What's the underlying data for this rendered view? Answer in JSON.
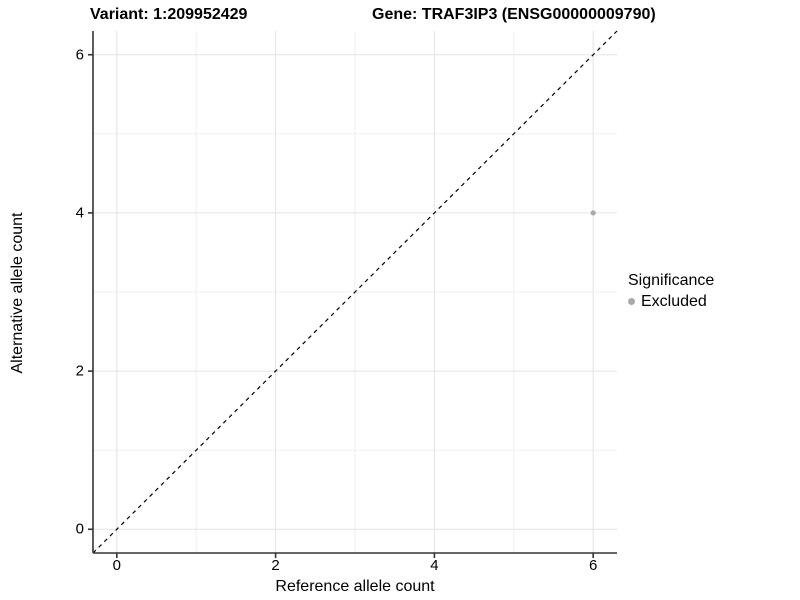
{
  "chart_data": {
    "type": "scatter",
    "titles": {
      "variant": "Variant: 1:209952429",
      "gene": "Gene: TRAF3IP3 (ENSG00000009790)"
    },
    "xlabel": "Reference allele count",
    "ylabel": "Alternative allele count",
    "xlim": [
      -0.3,
      6.3
    ],
    "ylim": [
      -0.3,
      6.3
    ],
    "x_ticks": [
      0,
      2,
      4,
      6
    ],
    "y_ticks": [
      0,
      2,
      4,
      6
    ],
    "x_minor_gridlines": [
      1,
      3,
      5
    ],
    "y_minor_gridlines": [
      1,
      3,
      5
    ],
    "grid": "on",
    "identity_line": {
      "style": "dashed",
      "color": "#000000",
      "from": -0.3,
      "to": 6.3
    },
    "series": [
      {
        "name": "Excluded",
        "color": "#a9a9a9",
        "point_radius": 2.6,
        "points": [
          {
            "x": 6,
            "y": 4
          }
        ]
      }
    ],
    "legend": {
      "title": "Significance",
      "position": "right",
      "items": [
        {
          "label": "Excluded",
          "color": "#a9a9a9"
        }
      ]
    }
  },
  "colors": {
    "background": "#ffffff",
    "grid_major": "#e4e4e4",
    "grid_minor": "#efefef",
    "axis_line": "#333333",
    "text": "#000000"
  }
}
